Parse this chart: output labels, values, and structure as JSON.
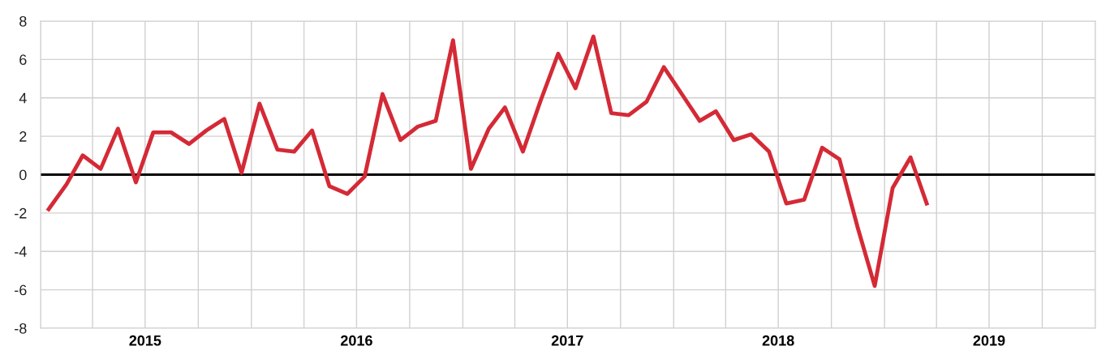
{
  "chart_data": {
    "type": "line",
    "x": [
      "2015-01-15",
      "2015-02-15",
      "2015-03-15",
      "2015-04-15",
      "2015-05-15",
      "2015-06-15",
      "2015-07-15",
      "2015-08-15",
      "2015-09-15",
      "2015-10-15",
      "2015-11-15",
      "2015-12-15",
      "2016-01-15",
      "2016-02-15",
      "2016-03-15",
      "2016-04-15",
      "2016-05-15",
      "2016-06-15",
      "2016-07-15",
      "2016-08-15",
      "2016-09-15",
      "2016-10-15",
      "2016-11-15",
      "2016-12-15",
      "2017-01-15",
      "2017-02-15",
      "2017-03-15",
      "2017-04-15",
      "2017-05-15",
      "2017-06-15",
      "2017-07-15",
      "2017-08-15",
      "2017-09-15",
      "2017-10-15",
      "2017-11-15",
      "2017-12-15",
      "2018-01-15",
      "2018-02-15",
      "2018-03-15",
      "2018-04-15",
      "2018-05-15",
      "2018-06-15",
      "2018-07-15",
      "2018-08-15",
      "2018-09-15",
      "2018-10-15",
      "2018-11-15",
      "2018-12-15",
      "2019-01-15",
      "2019-02-15",
      "2019-03-15"
    ],
    "series": [
      {
        "color": "#d42a36",
        "values": [
          -1.8,
          -0.5,
          1.0,
          0.3,
          2.4,
          -0.4,
          2.2,
          2.2,
          1.6,
          2.3,
          2.9,
          0.1,
          3.7,
          1.3,
          1.2,
          2.3,
          -0.6,
          -1.0,
          -0.1,
          4.2,
          1.8,
          2.5,
          2.8,
          7.0,
          0.3,
          2.4,
          3.5,
          1.2,
          3.8,
          6.3,
          4.5,
          7.2,
          3.2,
          3.1,
          3.8,
          5.6,
          4.2,
          2.8,
          3.3,
          1.8,
          2.1,
          1.2,
          -1.5,
          -1.3,
          1.4,
          0.8,
          -2.7,
          -5.8,
          -0.7,
          0.9,
          -1.5
        ]
      }
    ],
    "xlim": [
      "2015-01-01",
      "2020-01-01"
    ],
    "xticks": [
      {
        "value": "2015-01-01",
        "label": null
      },
      {
        "value": "2015-04-01",
        "label": null
      },
      {
        "value": "2015-07-01",
        "label": "2015"
      },
      {
        "value": "2015-10-01",
        "label": null
      },
      {
        "value": "2016-01-01",
        "label": null
      },
      {
        "value": "2016-04-01",
        "label": null
      },
      {
        "value": "2016-07-01",
        "label": "2016"
      },
      {
        "value": "2016-10-01",
        "label": null
      },
      {
        "value": "2017-01-01",
        "label": null
      },
      {
        "value": "2017-04-01",
        "label": null
      },
      {
        "value": "2017-07-01",
        "label": "2017"
      },
      {
        "value": "2017-10-01",
        "label": null
      },
      {
        "value": "2018-01-01",
        "label": null
      },
      {
        "value": "2018-04-01",
        "label": null
      },
      {
        "value": "2018-07-01",
        "label": "2018"
      },
      {
        "value": "2018-10-01",
        "label": null
      },
      {
        "value": "2019-01-01",
        "label": null
      },
      {
        "value": "2019-04-01",
        "label": null
      },
      {
        "value": "2019-07-01",
        "label": "2019"
      },
      {
        "value": "2019-10-01",
        "label": null
      },
      {
        "value": "2020-01-01",
        "label": null
      }
    ],
    "ylim": [
      -8,
      8
    ],
    "yticks": [
      -8,
      -6,
      -4,
      -2,
      0,
      2,
      4,
      6,
      8
    ],
    "grid": true,
    "ref_lines": [
      {
        "axis": "y",
        "value": 0,
        "color": "#000000",
        "line_style": "solid"
      }
    ],
    "marker": "none",
    "line_style": "solid",
    "legend": false
  }
}
